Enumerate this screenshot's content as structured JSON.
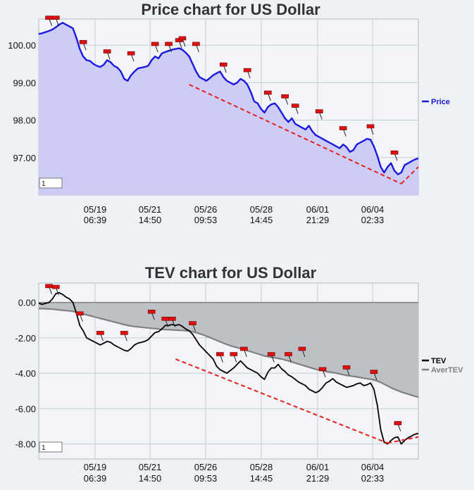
{
  "chart_data": [
    {
      "type": "area",
      "title": "Price chart for US Dollar",
      "ylim": [
        96.0,
        100.7
      ],
      "yticks": [
        "100.00",
        "99.00",
        "98.00",
        "97.00"
      ],
      "ytick_values": [
        100,
        99,
        98,
        97
      ],
      "xticks": [
        {
          "date": "05/19",
          "time": "06:39"
        },
        {
          "date": "05/21",
          "time": "14:50"
        },
        {
          "date": "05/26",
          "time": "09:53"
        },
        {
          "date": "05/28",
          "time": "14:45"
        },
        {
          "date": "06/01",
          "time": "21:29"
        },
        {
          "date": "06/04",
          "time": "02:33"
        }
      ],
      "grid": true,
      "legend_position": "right",
      "series": [
        {
          "name": "Price",
          "color": "#1a1adf",
          "fill": "#ccccf6",
          "values": [
            100.3,
            100.32,
            100.35,
            100.38,
            100.42,
            100.48,
            100.55,
            100.6,
            100.55,
            100.5,
            100.45,
            100.2,
            99.9,
            99.7,
            99.6,
            99.58,
            99.5,
            99.45,
            99.42,
            99.48,
            99.6,
            99.55,
            99.45,
            99.4,
            99.3,
            99.1,
            99.05,
            99.2,
            99.3,
            99.38,
            99.4,
            99.42,
            99.45,
            99.6,
            99.7,
            99.65,
            99.78,
            99.82,
            99.85,
            99.88,
            99.9,
            99.92,
            99.88,
            99.8,
            99.7,
            99.5,
            99.3,
            99.15,
            99.1,
            99.05,
            99.12,
            99.2,
            99.25,
            99.3,
            99.15,
            99.05,
            99.0,
            98.95,
            99.0,
            99.1,
            99.05,
            98.95,
            98.75,
            98.5,
            98.45,
            98.3,
            98.2,
            98.35,
            98.42,
            98.45,
            98.35,
            98.2,
            98.05,
            97.95,
            98.05,
            97.9,
            97.85,
            97.8,
            97.75,
            97.85,
            97.7,
            97.6,
            97.55,
            97.5,
            97.45,
            97.4,
            97.35,
            97.3,
            97.25,
            97.35,
            97.28,
            97.15,
            97.2,
            97.35,
            97.4,
            97.45,
            97.5,
            97.48,
            97.3,
            97.05,
            96.75,
            96.6,
            96.75,
            96.85,
            96.65,
            96.55,
            96.6,
            96.8,
            96.85,
            96.9,
            96.95,
            96.98
          ]
        }
      ],
      "markers": [
        {
          "x": 3,
          "y": 100.65
        },
        {
          "x": 5,
          "y": 100.65
        },
        {
          "x": 13,
          "y": 100.0
        },
        {
          "x": 20,
          "y": 99.75
        },
        {
          "x": 27,
          "y": 99.7
        },
        {
          "x": 34,
          "y": 99.95
        },
        {
          "x": 38,
          "y": 99.95
        },
        {
          "x": 41,
          "y": 100.05
        },
        {
          "x": 42,
          "y": 100.1
        },
        {
          "x": 46,
          "y": 99.95
        },
        {
          "x": 54,
          "y": 99.4
        },
        {
          "x": 61,
          "y": 99.25
        },
        {
          "x": 67,
          "y": 98.65
        },
        {
          "x": 72,
          "y": 98.55
        },
        {
          "x": 75,
          "y": 98.3
        },
        {
          "x": 82,
          "y": 98.15
        },
        {
          "x": 89,
          "y": 97.7
        },
        {
          "x": 97,
          "y": 97.75
        },
        {
          "x": 104,
          "y": 97.05
        }
      ],
      "trend_lines": [
        {
          "points": [
            [
              44,
              98.95
            ],
            [
              106,
              96.3
            ]
          ]
        },
        {
          "points": [
            [
              106,
              96.3
            ],
            [
              111,
              96.75
            ]
          ]
        }
      ],
      "input_value": "1"
    },
    {
      "type": "area",
      "title": "TEV chart for US Dollar",
      "ylim": [
        -8.85,
        1.1
      ],
      "yticks": [
        "0.00",
        "-2.00",
        "-4.00",
        "-6.00",
        "-8.00"
      ],
      "ytick_values": [
        0,
        -2,
        -4,
        -6,
        -8
      ],
      "xticks": [
        {
          "date": "05/19",
          "time": "06:39"
        },
        {
          "date": "05/21",
          "time": "14:50"
        },
        {
          "date": "05/26",
          "time": "09:53"
        },
        {
          "date": "05/28",
          "time": "14:45"
        },
        {
          "date": "06/01",
          "time": "21:29"
        },
        {
          "date": "06/04",
          "time": "02:33"
        }
      ],
      "grid": true,
      "legend_position": "right",
      "series": [
        {
          "name": "TEV",
          "color": "#000000",
          "values": [
            -0.05,
            -0.1,
            -0.05,
            0.0,
            0.2,
            0.5,
            0.55,
            0.45,
            0.3,
            0.2,
            0.0,
            -0.6,
            -1.3,
            -1.6,
            -2.0,
            -2.1,
            -2.2,
            -2.3,
            -2.4,
            -2.3,
            -2.2,
            -2.25,
            -2.4,
            -2.5,
            -2.6,
            -2.7,
            -2.75,
            -2.6,
            -2.4,
            -2.3,
            -2.25,
            -2.2,
            -2.1,
            -1.9,
            -1.7,
            -1.65,
            -1.5,
            -1.3,
            -1.3,
            -1.25,
            -1.3,
            -1.25,
            -1.35,
            -1.5,
            -1.6,
            -1.8,
            -2.1,
            -2.4,
            -2.6,
            -2.8,
            -3.0,
            -3.2,
            -3.6,
            -3.8,
            -3.9,
            -4.0,
            -3.85,
            -3.7,
            -3.5,
            -3.3,
            -3.5,
            -3.7,
            -3.8,
            -3.9,
            -4.0,
            -4.2,
            -4.35,
            -3.95,
            -3.7,
            -3.7,
            -3.5,
            -3.75,
            -3.9,
            -4.1,
            -4.2,
            -4.35,
            -4.5,
            -4.6,
            -4.7,
            -4.9,
            -5.0,
            -5.1,
            -5.0,
            -4.8,
            -4.55,
            -4.45,
            -4.3,
            -4.5,
            -4.6,
            -4.7,
            -4.8,
            -4.75,
            -4.7,
            -4.6,
            -4.55,
            -4.7,
            -4.65,
            -4.55,
            -4.9,
            -5.8,
            -7.2,
            -7.9,
            -8.0,
            -7.8,
            -7.65,
            -7.6,
            -8.0,
            -7.8,
            -7.65,
            -7.55,
            -7.45,
            -7.4
          ]
        },
        {
          "name": "AverTEV",
          "color": "#808080",
          "fill": "#bdc0c4",
          "values": [
            -0.35,
            -0.35,
            -0.36,
            -0.37,
            -0.38,
            -0.4,
            -0.42,
            -0.44,
            -0.46,
            -0.48,
            -0.5,
            -0.55,
            -0.6,
            -0.65,
            -0.7,
            -0.75,
            -0.8,
            -0.85,
            -0.9,
            -0.95,
            -1.0,
            -1.05,
            -1.1,
            -1.15,
            -1.2,
            -1.25,
            -1.3,
            -1.33,
            -1.36,
            -1.38,
            -1.4,
            -1.42,
            -1.44,
            -1.46,
            -1.48,
            -1.5,
            -1.52,
            -1.53,
            -1.54,
            -1.55,
            -1.56,
            -1.57,
            -1.58,
            -1.6,
            -1.62,
            -1.66,
            -1.7,
            -1.76,
            -1.82,
            -1.9,
            -1.98,
            -2.06,
            -2.14,
            -2.22,
            -2.3,
            -2.38,
            -2.44,
            -2.5,
            -2.55,
            -2.6,
            -2.66,
            -2.72,
            -2.78,
            -2.84,
            -2.9,
            -2.96,
            -3.02,
            -3.06,
            -3.1,
            -3.13,
            -3.16,
            -3.2,
            -3.25,
            -3.3,
            -3.36,
            -3.42,
            -3.48,
            -3.54,
            -3.6,
            -3.66,
            -3.72,
            -3.78,
            -3.82,
            -3.86,
            -3.9,
            -3.93,
            -3.96,
            -4.0,
            -4.04,
            -4.08,
            -4.12,
            -4.15,
            -4.18,
            -4.21,
            -4.24,
            -4.28,
            -4.31,
            -4.34,
            -4.38,
            -4.44,
            -4.52,
            -4.62,
            -4.72,
            -4.82,
            -4.9,
            -4.98,
            -5.06,
            -5.12,
            -5.18,
            -5.24,
            -5.3,
            -5.35
          ]
        }
      ],
      "markers": [
        {
          "x": 3,
          "y": 0.75
        },
        {
          "x": 5,
          "y": 0.7
        },
        {
          "x": 12,
          "y": -0.8
        },
        {
          "x": 18,
          "y": -1.9
        },
        {
          "x": 25,
          "y": -1.9
        },
        {
          "x": 33,
          "y": -0.7
        },
        {
          "x": 37,
          "y": -1.1
        },
        {
          "x": 39,
          "y": -1.1
        },
        {
          "x": 45,
          "y": -1.35
        },
        {
          "x": 53,
          "y": -3.1
        },
        {
          "x": 57,
          "y": -3.1
        },
        {
          "x": 60,
          "y": -2.8
        },
        {
          "x": 68,
          "y": -3.1
        },
        {
          "x": 73,
          "y": -3.1
        },
        {
          "x": 77,
          "y": -2.8
        },
        {
          "x": 83,
          "y": -3.95
        },
        {
          "x": 90,
          "y": -3.85
        },
        {
          "x": 98,
          "y": -4.1
        },
        {
          "x": 105,
          "y": -7.0
        }
      ],
      "trend_lines": [
        {
          "points": [
            [
              40,
              -3.2
            ],
            [
              102,
              -7.95
            ]
          ]
        },
        {
          "points": [
            [
              102,
              -7.95
            ],
            [
              111,
              -7.6
            ]
          ]
        }
      ],
      "input_value": "1"
    }
  ]
}
